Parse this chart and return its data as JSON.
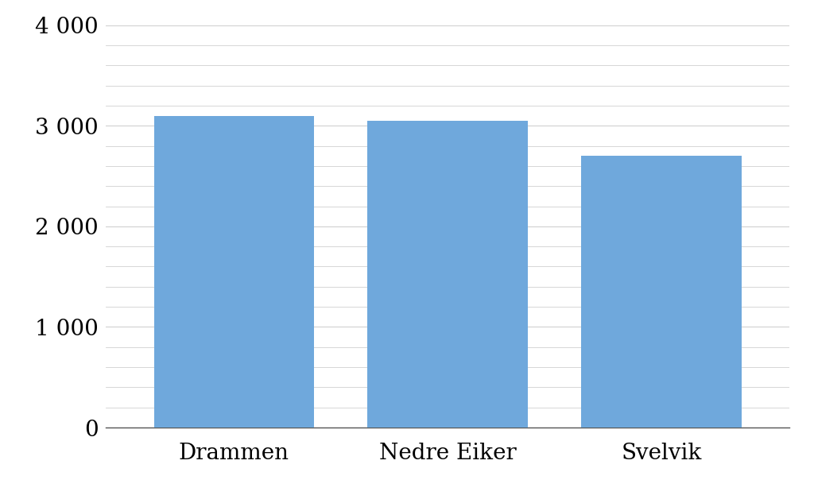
{
  "categories": [
    "Drammen",
    "Nedre Eiker",
    "Svelvik"
  ],
  "values": [
    3100,
    3050,
    2700
  ],
  "bar_color": "#6fa8dc",
  "ylim": [
    0,
    4000
  ],
  "yticks": [
    0,
    1000,
    2000,
    3000,
    4000
  ],
  "ytick_labels": [
    "0",
    "1 000",
    "2 000",
    "3 000",
    "4 000"
  ],
  "background_color": "#ffffff",
  "grid_color": "#d0d0d0",
  "bar_width": 0.75,
  "tick_label_fontsize": 20,
  "minor_grid_interval": 200
}
